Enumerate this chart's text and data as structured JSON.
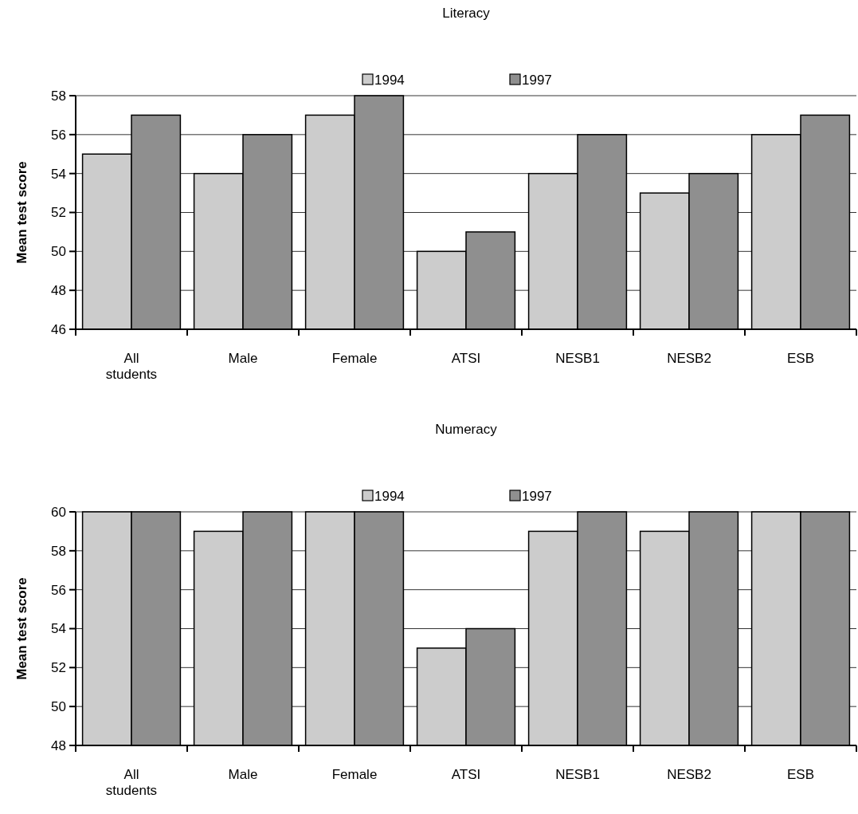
{
  "chart_data": [
    {
      "type": "bar",
      "title": "Literacy",
      "ylabel": "Mean test score",
      "categories": [
        "All students",
        "Male",
        "Female",
        "ATSI",
        "NESB1",
        "NESB2",
        "ESB"
      ],
      "series": [
        {
          "name": "1994",
          "color": "#cccccc",
          "values": [
            55,
            54,
            57,
            50,
            54,
            53,
            56
          ]
        },
        {
          "name": "1997",
          "color": "#8f8f8f",
          "values": [
            57,
            56,
            58,
            51,
            56,
            54,
            57
          ]
        }
      ],
      "ylim": [
        46,
        58
      ],
      "yticks": [
        46,
        48,
        50,
        52,
        54,
        56,
        58
      ],
      "grid": "y",
      "legend": "top"
    },
    {
      "type": "bar",
      "title": "Numeracy",
      "ylabel": "Mean test score",
      "categories": [
        "All students",
        "Male",
        "Female",
        "ATSI",
        "NESB1",
        "NESB2",
        "ESB"
      ],
      "series": [
        {
          "name": "1994",
          "color": "#cccccc",
          "values": [
            60,
            59,
            60,
            53,
            59,
            59,
            60
          ]
        },
        {
          "name": "1997",
          "color": "#8f8f8f",
          "values": [
            60,
            60,
            60,
            54,
            60,
            60,
            60
          ]
        }
      ],
      "ylim": [
        48,
        60
      ],
      "yticks": [
        48,
        50,
        52,
        54,
        56,
        58,
        60
      ],
      "grid": "y",
      "legend": "top"
    }
  ]
}
